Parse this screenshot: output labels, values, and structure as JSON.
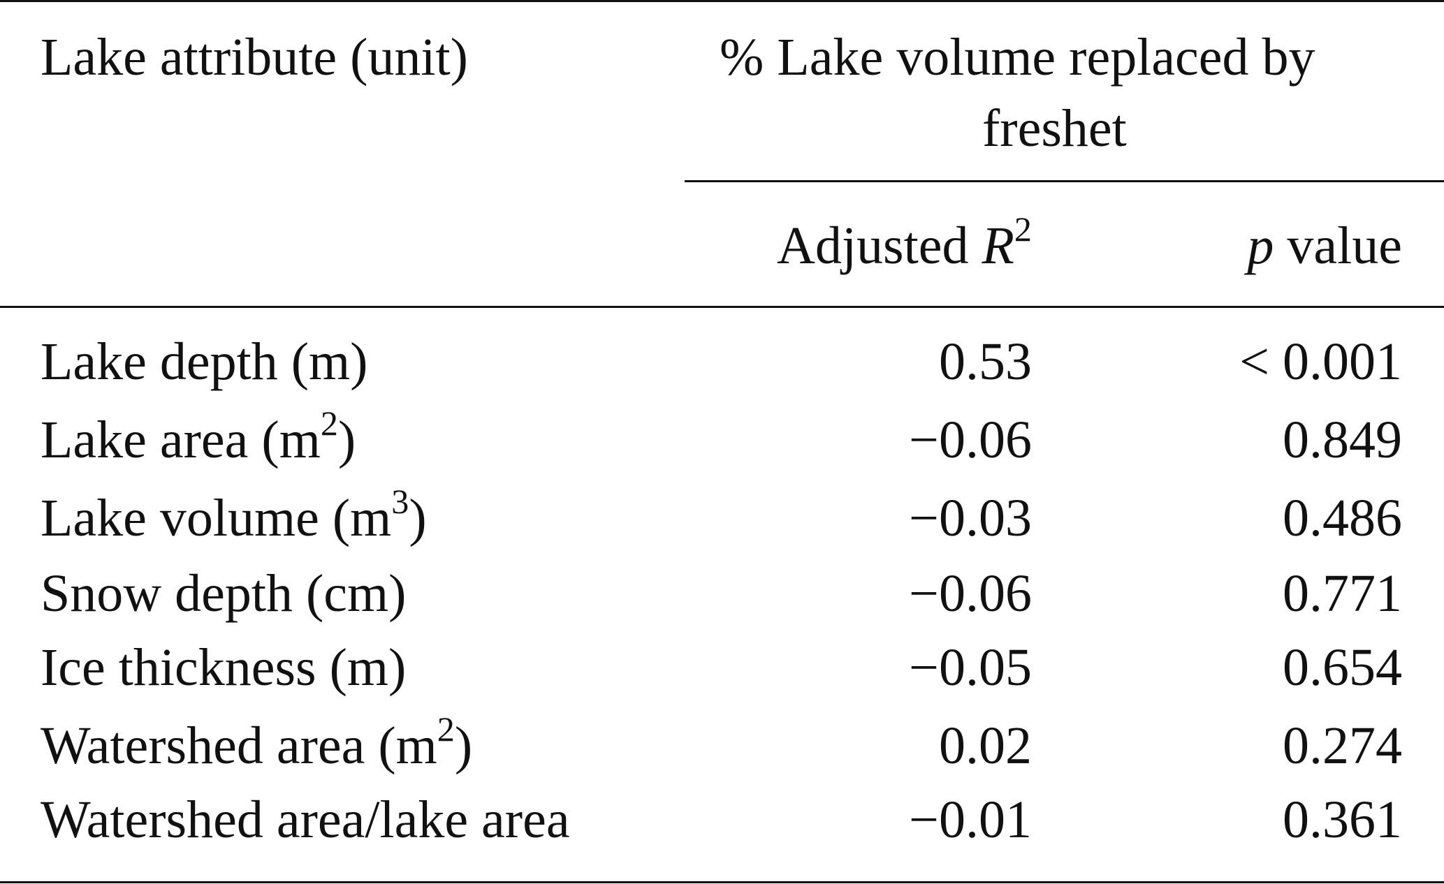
{
  "table": {
    "header": {
      "attribute": "Lake attribute (unit)",
      "group_line1": "% Lake volume replaced by",
      "group_line2": "freshet",
      "col_r2_text": "Adjusted ",
      "col_r2_var": "R",
      "col_r2_sup": "2",
      "col_p_var": "p",
      "col_p_text": " value"
    },
    "rows": [
      {
        "label": "Lake depth (m)",
        "sup": "",
        "suffix": "",
        "r2": "0.53",
        "p": "< 0.001"
      },
      {
        "label": "Lake area (m",
        "sup": "2",
        "suffix": ")",
        "r2": "−0.06",
        "p": "0.849"
      },
      {
        "label": "Lake volume (m",
        "sup": "3",
        "suffix": ")",
        "r2": "−0.03",
        "p": "0.486"
      },
      {
        "label": "Snow depth (cm)",
        "sup": "",
        "suffix": "",
        "r2": "−0.06",
        "p": "0.771"
      },
      {
        "label": "Ice thickness (m)",
        "sup": "",
        "suffix": "",
        "r2": "−0.05",
        "p": "0.654"
      },
      {
        "label": "Watershed area (m",
        "sup": "2",
        "suffix": ")",
        "r2": "0.02",
        "p": "0.274"
      },
      {
        "label": "Watershed area/lake area",
        "sup": "",
        "suffix": "",
        "r2": "−0.01",
        "p": "0.361"
      }
    ]
  }
}
